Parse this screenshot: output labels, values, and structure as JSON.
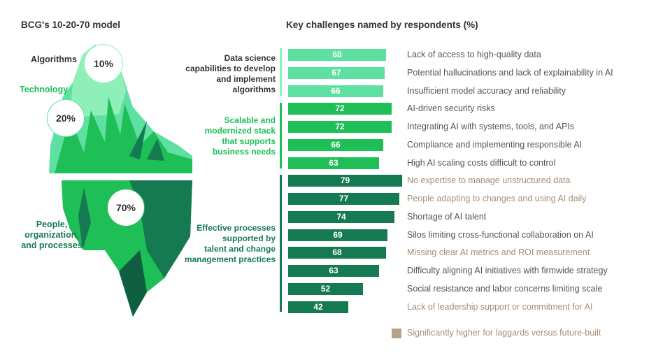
{
  "left_title": "BCG's 10-20-70 model",
  "right_title": "Key challenges named by respondents (%)",
  "iceberg": {
    "algorithms_label": "Algorithms",
    "algorithms_pct": "10%",
    "technology_label": "Technology",
    "technology_pct": "20%",
    "people_label_lines": [
      "People,",
      "organization,",
      "and processes"
    ],
    "people_pct": "70%"
  },
  "groups": [
    {
      "lines": [
        "Data science",
        "capabilities to develop",
        "and implement",
        "algorithms"
      ],
      "color": "#5fe0a3"
    },
    {
      "lines": [
        "Scalable and",
        "modernized stack",
        "that supports",
        "business needs"
      ],
      "color": "#1dbf56"
    },
    {
      "lines": [
        "Effective processes",
        "supported by",
        "talent and change",
        "management practices"
      ],
      "color": "#157a52"
    }
  ],
  "colors": {
    "light": "#5fe0a3",
    "mid": "#1dbf56",
    "dark": "#157a52",
    "highlight_text": "#a58d78",
    "normal_text": "#555555",
    "legend": "#b6a18a"
  },
  "chart_data": {
    "type": "bar",
    "orientation": "horizontal",
    "title": "Key challenges named by respondents (%)",
    "categories": [
      "Lack of access to high-quality data",
      "Potential hallucinations and lack of explainability in AI",
      "Insufficient model accuracy and reliability",
      "AI-driven security risks",
      "Integrating AI with systems, tools, and APIs",
      "Compliance and implementing responsible AI",
      "High AI scaling costs difficult to control",
      "No expertise to manage unstructured data",
      "People adapting to changes and using AI daily",
      "Shortage of AI talent",
      "Silos limiting cross-functional collaboration on AI",
      "Missing clear AI metrics and ROI measurement",
      "Difficulty aligning AI initiatives with firmwide strategy",
      "Social resistance and labor concerns limiting scale",
      "Lack of leadership support or commitment for AI"
    ],
    "values": [
      68,
      67,
      66,
      72,
      72,
      66,
      63,
      79,
      77,
      74,
      69,
      68,
      63,
      52,
      42
    ],
    "group": [
      0,
      0,
      0,
      1,
      1,
      1,
      1,
      2,
      2,
      2,
      2,
      2,
      2,
      2,
      2
    ],
    "highlighted": [
      false,
      false,
      false,
      false,
      false,
      false,
      false,
      true,
      true,
      false,
      false,
      true,
      false,
      false,
      true
    ],
    "legend": "Significantly higher for laggards versus future-built"
  }
}
